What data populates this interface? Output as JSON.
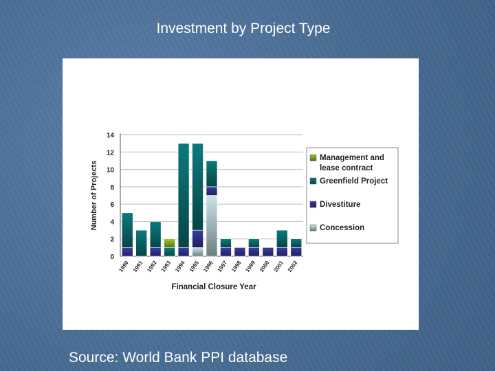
{
  "slide": {
    "title": "Investment by Project Type",
    "source": "Source: World Bank PPI database"
  },
  "chart_data": {
    "type": "bar",
    "stacked": true,
    "title": "",
    "xlabel": "Financial Closure Year",
    "ylabel": "Number of Projects",
    "ylim": [
      0,
      14
    ],
    "yticks": [
      0,
      2,
      4,
      6,
      8,
      10,
      12,
      14
    ],
    "grid": true,
    "legend_position": "right",
    "categories": [
      "1990",
      "1991",
      "1992",
      "1993",
      "1994",
      "1995",
      "1996",
      "1997",
      "1998",
      "1999",
      "2000",
      "2001",
      "2002"
    ],
    "x_tick_labels": [
      "1990",
      "1991",
      "1992",
      "1993",
      "1994",
      "1995",
      "1996",
      "1997",
      "1998",
      "1999",
      "2000",
      "2001",
      "2002"
    ],
    "series": [
      {
        "name": "Concession",
        "color": "#c8e4ea",
        "values": [
          0,
          0,
          0,
          0,
          0,
          1,
          7,
          0,
          0,
          0,
          0,
          0,
          0
        ]
      },
      {
        "name": "Divestiture",
        "color": "#3a3aa8",
        "values": [
          1,
          0,
          1,
          0,
          1,
          2,
          1,
          1,
          1,
          1,
          1,
          1,
          1
        ]
      },
      {
        "name": "Greenfield Project",
        "color": "#0b7b7e",
        "values": [
          4,
          3,
          3,
          1,
          12,
          10,
          3,
          1,
          0,
          1,
          0,
          2,
          1
        ]
      },
      {
        "name": "Management and lease contract",
        "color": "#9ccc2a",
        "values": [
          0,
          0,
          0,
          1,
          0,
          0,
          0,
          0,
          0,
          0,
          0,
          0,
          0
        ]
      }
    ],
    "legend": {
      "entries": [
        {
          "lines": [
            "Management and",
            "lease contract"
          ],
          "color": "#9ccc2a"
        },
        {
          "lines": [
            "Greenfield Project"
          ],
          "color": "#0b7b7e"
        },
        {
          "lines": [
            "Divestiture"
          ],
          "color": "#3a3aa8"
        },
        {
          "lines": [
            "Concession"
          ],
          "color": "#c8e4ea"
        }
      ]
    }
  }
}
